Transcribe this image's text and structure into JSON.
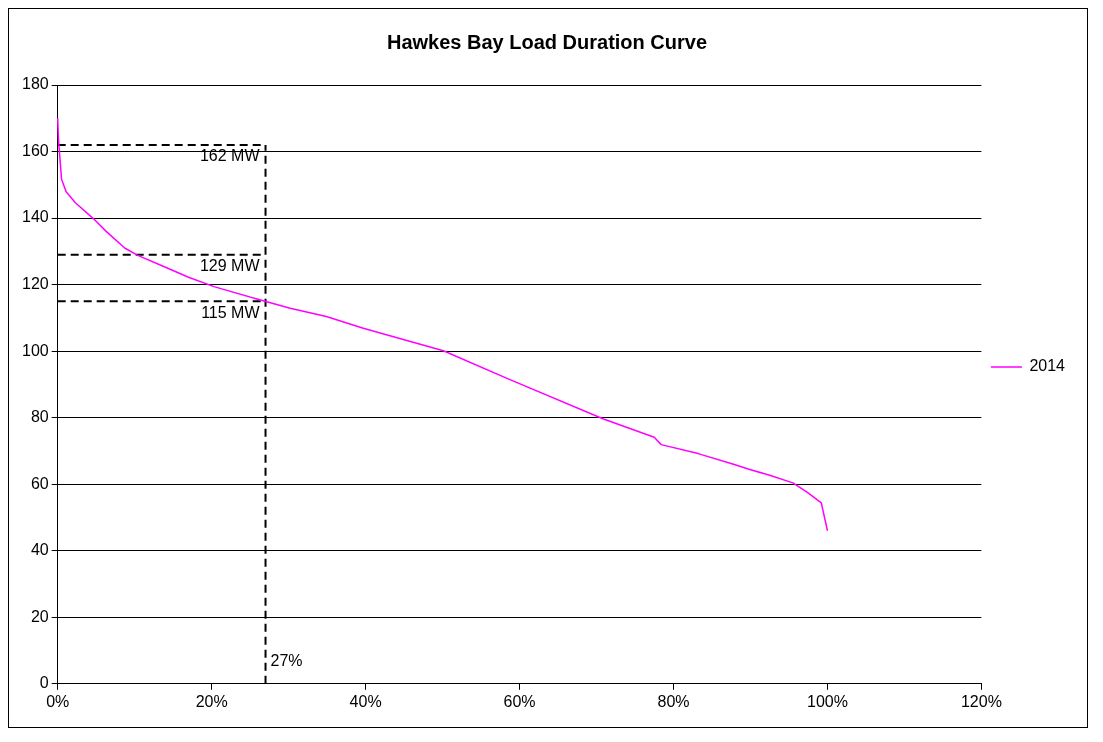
{
  "chart_data": {
    "type": "line",
    "title": "Hawkes Bay Load Duration Curve",
    "series": [
      {
        "name": "2014",
        "color": "#ff00ff",
        "x": [
          0,
          0.1,
          0.5,
          1.1,
          2.3,
          4.7,
          6.3,
          8.7,
          10.4,
          13.7,
          17,
          20.3,
          26,
          30.2,
          34.9,
          39.7,
          50.1,
          58.6,
          70.9,
          77.5,
          78.4,
          83.2,
          87.9,
          89.8,
          92.6,
          95.5,
          97.3,
          99.2,
          100
        ],
        "values": [
          170,
          163.7,
          151.7,
          147.9,
          144.6,
          139.7,
          136,
          131,
          128.8,
          125.5,
          122.2,
          119.4,
          115.6,
          112.9,
          110.4,
          106.9,
          100.1,
          91.6,
          79.6,
          74.1,
          71.9,
          69.2,
          65.9,
          64.5,
          62.6,
          60.4,
          57.7,
          54.4,
          46
        ]
      }
    ],
    "xlim": [
      0,
      120
    ],
    "xticks": [
      {
        "value": 0,
        "label": "0%"
      },
      {
        "value": 20,
        "label": "20%"
      },
      {
        "value": 40,
        "label": "40%"
      },
      {
        "value": 60,
        "label": "60%"
      },
      {
        "value": 80,
        "label": "80%"
      },
      {
        "value": 100,
        "label": "100%"
      },
      {
        "value": 120,
        "label": "120%"
      }
    ],
    "ylim": [
      0,
      180
    ],
    "yticks": [
      0,
      20,
      40,
      60,
      80,
      100,
      120,
      140,
      160,
      180
    ],
    "ref_lines": [
      {
        "axis": "x",
        "value": 27,
        "label": "27%",
        "color": "#000000",
        "line_style": "dashed"
      },
      {
        "axis": "y",
        "value": 162,
        "label": "162 MW",
        "color": "#000000",
        "line_style": "dashed"
      },
      {
        "axis": "y",
        "value": 129,
        "label": "129 MW",
        "color": "#000000",
        "line_style": "dashed"
      },
      {
        "axis": "y",
        "value": 115,
        "label": "115 MW",
        "color": "#000000",
        "line_style": "dashed"
      }
    ],
    "grid": "y",
    "legend": "right",
    "marker": "none",
    "line_style": "solid"
  }
}
